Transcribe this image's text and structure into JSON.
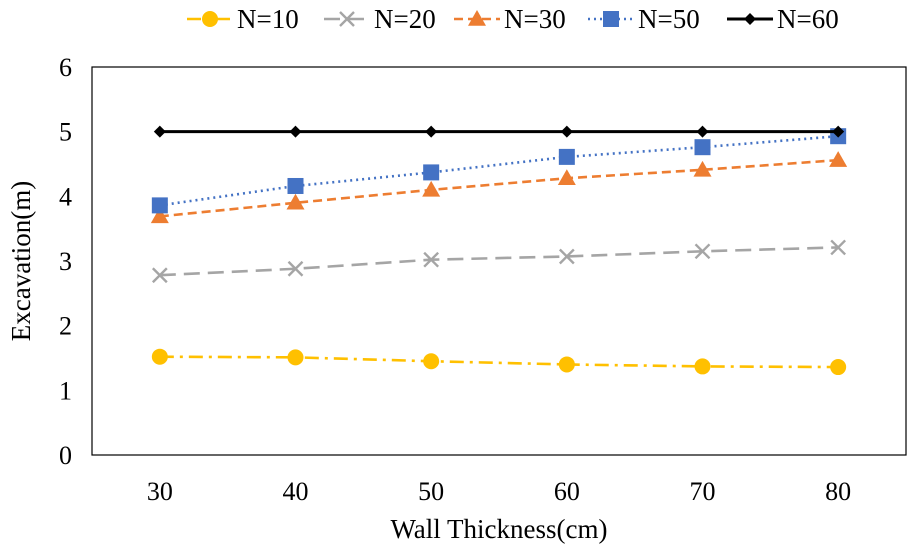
{
  "chart_data": {
    "type": "line",
    "title": "",
    "xlabel": "Wall Thickness(cm)",
    "ylabel": "Excavation(m)",
    "x": [
      30,
      40,
      50,
      60,
      70,
      80
    ],
    "x_tick_labels": [
      "30",
      "40",
      "50",
      "60",
      "70",
      "80"
    ],
    "xlim": [
      25,
      85
    ],
    "ylim": [
      0,
      6
    ],
    "y_ticks": [
      0,
      1,
      2,
      3,
      4,
      5,
      6
    ],
    "y_tick_labels": [
      "0",
      "1",
      "2",
      "3",
      "4",
      "5",
      "6"
    ],
    "grid": false,
    "legend_position": "top",
    "series": [
      {
        "name": "N=10",
        "values": [
          1.52,
          1.51,
          1.45,
          1.4,
          1.37,
          1.36
        ],
        "color": "#FFC000",
        "marker": "circle",
        "dash": "dash-dot"
      },
      {
        "name": "N=20",
        "values": [
          2.78,
          2.88,
          3.02,
          3.07,
          3.15,
          3.21
        ],
        "color": "#A5A5A5",
        "marker": "x",
        "dash": "long-dash"
      },
      {
        "name": "N=30",
        "values": [
          3.69,
          3.9,
          4.1,
          4.28,
          4.41,
          4.56
        ],
        "color": "#ED7D31",
        "marker": "triangle",
        "dash": "dash"
      },
      {
        "name": "N=50",
        "values": [
          3.86,
          4.16,
          4.37,
          4.61,
          4.76,
          4.93
        ],
        "color": "#4472C4",
        "marker": "square",
        "dash": "dot"
      },
      {
        "name": "N=60",
        "values": [
          5.0,
          5.0,
          5.0,
          5.0,
          5.0,
          5.0
        ],
        "color": "#000000",
        "marker": "diamond",
        "dash": "solid"
      }
    ]
  }
}
